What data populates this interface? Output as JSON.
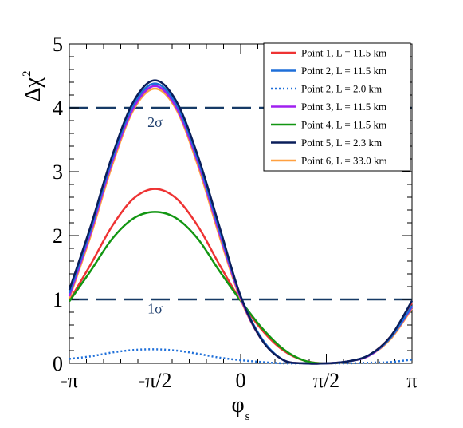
{
  "chart_data": {
    "type": "line",
    "xlabel": "φ",
    "xlabel_sub": "s",
    "ylabel": "Δχ",
    "ylabel_sup": "2",
    "xlim": [
      -3.14159,
      3.14159
    ],
    "ylim": [
      0,
      5
    ],
    "x_ticks": [
      {
        "value": -3.14159,
        "label": "-π"
      },
      {
        "value": -1.5708,
        "label": "-π/2"
      },
      {
        "value": 0,
        "label": "0"
      },
      {
        "value": 1.5708,
        "label": "π/2"
      },
      {
        "value": 3.14159,
        "label": "π"
      }
    ],
    "y_ticks": [
      {
        "value": 0,
        "label": "0"
      },
      {
        "value": 1,
        "label": "1"
      },
      {
        "value": 2,
        "label": "2"
      },
      {
        "value": 3,
        "label": "3"
      },
      {
        "value": 4,
        "label": "4"
      },
      {
        "value": 5,
        "label": "5"
      }
    ],
    "legend_position": "top-right",
    "reference_lines": [
      {
        "y": 4,
        "label": "2σ",
        "label_x": -1.5708,
        "label_y": 3.7
      },
      {
        "y": 1,
        "label": "1σ",
        "label_x": -1.5708,
        "label_y": 0.78
      }
    ],
    "series_sample_x": [
      -3.14159,
      -2.74889,
      -2.35619,
      -1.9635,
      -1.5708,
      -1.1781,
      -0.7854,
      -0.3927,
      0,
      0.3927,
      0.7854,
      1.1781,
      1.5708,
      1.9635,
      2.35619,
      2.74889,
      3.14159
    ],
    "series": [
      {
        "name": "Point 1, L = 11.5 km",
        "color": "#ee3333",
        "style": "solid",
        "values": [
          0.98,
          1.55,
          2.15,
          2.58,
          2.73,
          2.58,
          2.15,
          1.55,
          0.98,
          0.52,
          0.2,
          0.04,
          0.0,
          0.03,
          0.13,
          0.42,
          0.95
        ]
      },
      {
        "name": "Point 2, L = 11.5 km",
        "color": "#1e6fd9",
        "style": "solid",
        "values": [
          1.1,
          2.1,
          3.2,
          4.05,
          4.38,
          4.05,
          3.2,
          2.1,
          1.05,
          0.38,
          0.05,
          0.0,
          0.0,
          0.03,
          0.13,
          0.4,
          0.9
        ]
      },
      {
        "name": "Point 2, L = 2.0 km",
        "color": "#1e6fd9",
        "style": "dotted",
        "values": [
          0.07,
          0.11,
          0.17,
          0.21,
          0.22,
          0.2,
          0.15,
          0.09,
          0.05,
          0.02,
          0.0,
          0.0,
          0.0,
          0.0,
          0.01,
          0.02,
          0.06
        ]
      },
      {
        "name": "Point 3, L = 11.5 km",
        "color": "#a020f0",
        "style": "solid",
        "values": [
          1.05,
          2.05,
          3.15,
          4.0,
          4.34,
          4.0,
          3.15,
          2.05,
          1.02,
          0.36,
          0.05,
          0.0,
          0.0,
          0.03,
          0.12,
          0.4,
          0.88
        ]
      },
      {
        "name": "Point 4, L = 11.5 km",
        "color": "#129612",
        "style": "solid",
        "values": [
          0.97,
          1.45,
          1.95,
          2.27,
          2.37,
          2.27,
          1.95,
          1.45,
          0.98,
          0.55,
          0.22,
          0.04,
          0.0,
          0.03,
          0.12,
          0.4,
          0.87
        ]
      },
      {
        "name": "Point 5, L = 2.3 km",
        "color": "#0a1e5a",
        "style": "solid",
        "values": [
          1.15,
          2.15,
          3.25,
          4.1,
          4.43,
          4.1,
          3.25,
          2.15,
          1.05,
          0.36,
          0.05,
          0.0,
          0.0,
          0.03,
          0.13,
          0.42,
          0.98
        ]
      },
      {
        "name": "Point 6, L = 33.0 km",
        "color": "#ffa040",
        "style": "solid",
        "values": [
          1.02,
          2.0,
          3.1,
          3.97,
          4.3,
          3.97,
          3.1,
          2.0,
          1.0,
          0.36,
          0.05,
          0.0,
          0.0,
          0.03,
          0.12,
          0.38,
          0.86
        ]
      }
    ]
  }
}
